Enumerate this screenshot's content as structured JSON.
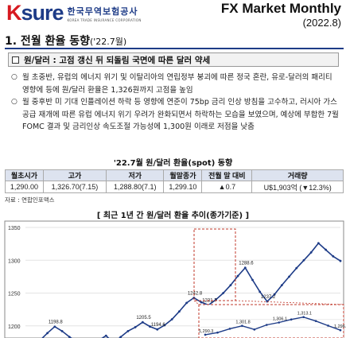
{
  "header": {
    "logo_k": "K",
    "logo_sure": "sure",
    "logo_ko": "한국무역보험공사",
    "logo_en": "KOREA TRADE INSURANCE CORPORATION",
    "title": "FX Market Monthly",
    "date": "(2022.8)"
  },
  "section": {
    "title": "1. 전월 환율 동향",
    "title_sub": "('22.7월)"
  },
  "subsection": {
    "title": "원/달러 : 고점 갱신 뒤 되돌림 국면에 따른 달러 약세"
  },
  "bullets": [
    "월 초중반, 유럽의 에너지 위기 및 이탈리아의 연립정부 붕괴에 따른 정국 혼란, 유로-달러의 패리티 영향에 등에 원/달러 환율은 1,326원까지 고점을 높임",
    "월 중후반 미 기대 인플레이션 하락 등 영향에 연준이 75bp 금리 인상 방침을 고수하고, 러시아 가스공급 재개에 따른 유럽 에너지 위기 우려가 완화되면서 하락하는 모습을 보였으며, 예상에 부합한 7월 FOMC 결과 및 금리인상 속도조절 가능성에 1,300원 이래로 저점을 낮춤"
  ],
  "table": {
    "title": "'22.7월 원/달러 환율(spot) 동향",
    "headers": [
      "월초시가",
      "고가",
      "저가",
      "월말종가",
      "전월 말 대비",
      "거래량"
    ],
    "row": [
      "1,290.00",
      "1,326.70(7.15)",
      "1,288.80(7.1)",
      "1,299.10",
      "▲0.7",
      "U$1,903억 (▼12.3%)"
    ]
  },
  "source": "자료 : 연합인포맥스",
  "chart_title": "[ 최근 1년 간 원/달러 환율 추이(종가기준) ]",
  "chart_data": {
    "type": "line",
    "ylim": [
      1150,
      1350
    ],
    "yticks": [
      "1350",
      "1300",
      "1250",
      "1200"
    ],
    "annotations": [
      "1198.8",
      "1183.2",
      "1167.6",
      "1174.5",
      "1205.5",
      "1194.6",
      "1242.8",
      "1231.7",
      "1288.6",
      "1237.2"
    ],
    "series": [
      {
        "values": [
          1162,
          1170,
          1178,
          1189,
          1198.8,
          1192,
          1183.2,
          1176,
          1167.6,
          1172,
          1178,
          1185,
          1174.5,
          1183,
          1192,
          1198,
          1205.5,
          1199,
          1194.6,
          1201,
          1210,
          1222,
          1235,
          1242.8,
          1236,
          1231.7,
          1240,
          1250,
          1262,
          1276,
          1288.6,
          1270,
          1252,
          1237.2,
          1248,
          1262,
          1275,
          1288,
          1300,
          1312,
          1326,
          1316,
          1306,
          1299
        ]
      }
    ],
    "inset": {
      "annotations": [
        "1,290.3",
        "1,301.8",
        "1,306.1",
        "1,313.1",
        "1,296.1"
      ],
      "values": [
        1290.3,
        1293,
        1298,
        1301.8,
        1297,
        1303,
        1306.1,
        1310,
        1313.1,
        1308,
        1302,
        1296.1
      ]
    }
  }
}
